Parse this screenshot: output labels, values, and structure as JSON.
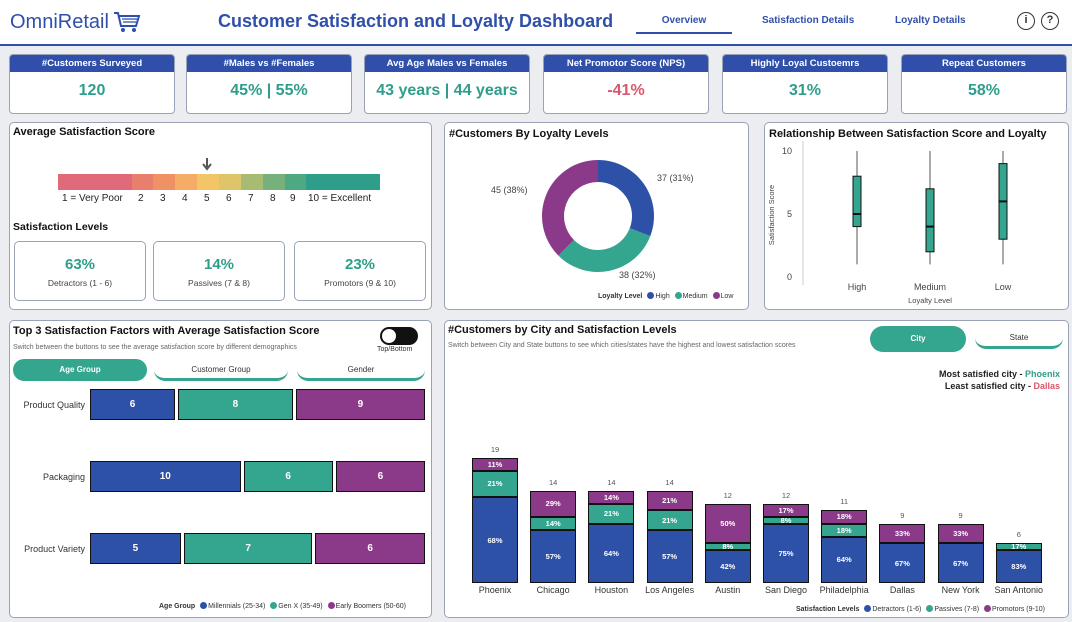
{
  "header": {
    "logo": "OmniRetail",
    "title": "Customer Satisfaction and Loyalty Dashboard",
    "nav": [
      "Overview",
      "Satisfaction Details",
      "Loyalty Details"
    ],
    "info_icon": "i",
    "help_icon": "?"
  },
  "kpis": [
    {
      "label": "#Customers Surveyed",
      "value": "120",
      "color": "#2e9e8a"
    },
    {
      "label": "#Males vs #Females",
      "value": "45% | 55%",
      "color": "#2e9e8a"
    },
    {
      "label": "Avg Age Males vs Females",
      "value": "43 years | 44 years",
      "color": "#2e9e8a"
    },
    {
      "label": "Net Promotor Score (NPS)",
      "value": "-41%",
      "color": "#d9576b"
    },
    {
      "label": "Highly Loyal Custoemrs",
      "value": "31%",
      "color": "#2e9e8a"
    },
    {
      "label": "Repeat Customers",
      "value": "58%",
      "color": "#2e9e8a"
    }
  ],
  "satisfaction": {
    "title": "Average Satisfaction Score",
    "score": 5,
    "scale_labels": [
      "1 = Very Poor",
      "2",
      "3",
      "4",
      "5",
      "6",
      "7",
      "8",
      "9",
      "10 = Excellent"
    ],
    "scale_colors": [
      "#e0697a",
      "#e77f6c",
      "#ee9266",
      "#f4ac66",
      "#f4c567",
      "#dfc56a",
      "#a8bb72",
      "#76b07a",
      "#4ea983",
      "#2e9e8a"
    ],
    "levels_title": "Satisfaction Levels",
    "levels": [
      {
        "value": "63%",
        "label": "Detractors (1 - 6)"
      },
      {
        "value": "14%",
        "label": "Passives (7 & 8)"
      },
      {
        "value": "23%",
        "label": "Promotors (9 & 10)"
      }
    ]
  },
  "donut": {
    "title": "#Customers By Loyalty Levels",
    "legend_title": "Loyalty Level",
    "slices": [
      {
        "name": "High",
        "value": 37,
        "label": "37 (31%)",
        "color": "#2e51a8"
      },
      {
        "name": "Medium",
        "value": 38,
        "label": "38 (32%)",
        "color": "#34a58f"
      },
      {
        "name": "Low",
        "value": 45,
        "label": "45 (38%)",
        "color": "#8b3a8a"
      }
    ]
  },
  "boxplot": {
    "title": "Relationship Between Satisfaction Score and Loyalty",
    "ylabel": "Satisfaction Score",
    "xlabel": "Loyalty Level",
    "yticks": [
      "10",
      "5",
      "0"
    ],
    "categories": [
      "High",
      "Medium",
      "Low"
    ],
    "boxes": [
      {
        "min": 1,
        "q1": 4,
        "median": 5,
        "q3": 8,
        "max": 10
      },
      {
        "min": 1,
        "q1": 2,
        "median": 4,
        "q3": 7,
        "max": 10
      },
      {
        "min": 1,
        "q1": 3,
        "median": 6,
        "q3": 9,
        "max": 10
      }
    ]
  },
  "factors": {
    "title": "Top 3 Satisfaction Factors with Average Satisfaction Score",
    "subtitle": "Switch between the buttons to see the average satisfaction score by different demographics",
    "toggle_label": "Top/Bottom",
    "tabs": [
      "Age Group",
      "Customer Group",
      "Gender"
    ],
    "rows": [
      {
        "label": "Product Quality",
        "values": [
          6,
          8,
          9
        ]
      },
      {
        "label": "Packaging",
        "values": [
          10,
          6,
          6
        ]
      },
      {
        "label": "Product Variety",
        "values": [
          5,
          7,
          6
        ]
      }
    ],
    "legend_title": "Age Group",
    "series": [
      {
        "name": "Millennials (25-34)",
        "color": "#2e51a8"
      },
      {
        "name": "Gen X (35-49)",
        "color": "#34a58f"
      },
      {
        "name": "Early Boomers (50-60)",
        "color": "#8b3a8a"
      }
    ]
  },
  "city": {
    "title": "#Customers by City and Satisfaction Levels",
    "subtitle": "Switch between City and State buttons to see which cities/states have the highest and lowest satisfaction scores",
    "tabs": [
      "City",
      "State"
    ],
    "most_label": "Most satisfied city - ",
    "most_value": "Phoenix",
    "least_label": "Least satisfied city - ",
    "least_value": "Dallas",
    "legend_title": "Satisfaction Levels",
    "series": [
      {
        "name": "Detractors (1-6)",
        "color": "#2e51a8"
      },
      {
        "name": "Passives (7-8)",
        "color": "#34a58f"
      },
      {
        "name": "Promotors (9-10)",
        "color": "#8b3a8a"
      }
    ],
    "cities": [
      {
        "name": "Phoenix",
        "total": 19,
        "pct": [
          "68%",
          "21%",
          "11%"
        ],
        "counts": [
          13,
          4,
          2
        ]
      },
      {
        "name": "Chicago",
        "total": 14,
        "pct": [
          "57%",
          "14%",
          "29%"
        ],
        "counts": [
          8,
          2,
          4
        ]
      },
      {
        "name": "Houston",
        "total": 14,
        "pct": [
          "64%",
          "21%",
          "14%"
        ],
        "counts": [
          9,
          3,
          2
        ]
      },
      {
        "name": "Los Angeles",
        "total": 14,
        "pct": [
          "57%",
          "21%",
          "21%"
        ],
        "counts": [
          8,
          3,
          3
        ]
      },
      {
        "name": "Austin",
        "total": 12,
        "pct": [
          "42%",
          "8%",
          "50%"
        ],
        "counts": [
          5,
          1,
          6
        ]
      },
      {
        "name": "San Diego",
        "total": 12,
        "pct": [
          "75%",
          "8%",
          "17%"
        ],
        "counts": [
          9,
          1,
          2
        ]
      },
      {
        "name": "Philadelphia",
        "total": 11,
        "pct": [
          "64%",
          "18%",
          "18%"
        ],
        "counts": [
          7,
          2,
          2
        ]
      },
      {
        "name": "Dallas",
        "total": 9,
        "pct": [
          "67%",
          "",
          "33%"
        ],
        "counts": [
          6,
          0,
          3
        ]
      },
      {
        "name": "New York",
        "total": 9,
        "pct": [
          "67%",
          "",
          "33%"
        ],
        "counts": [
          6,
          0,
          3
        ]
      },
      {
        "name": "San Antonio",
        "total": 6,
        "pct": [
          "83%",
          "17%",
          ""
        ],
        "counts": [
          5,
          1,
          0
        ]
      }
    ]
  }
}
